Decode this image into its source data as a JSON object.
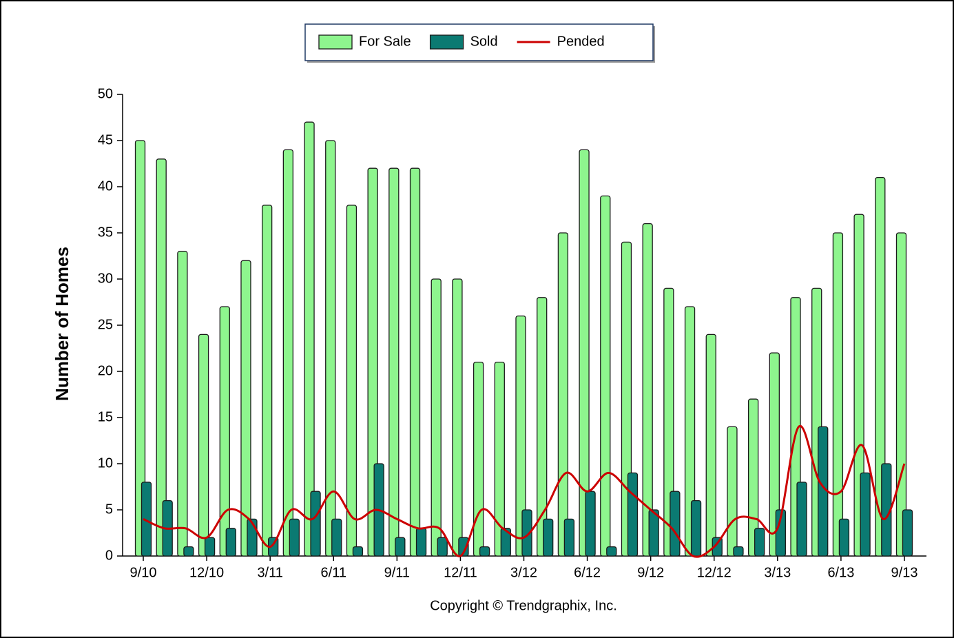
{
  "chart_data": {
    "type": "bar",
    "y_label": "Number of Homes",
    "footer": "Copyright © Trendgraphix, Inc.",
    "legend": "top",
    "grid": false,
    "categories": [
      "9/10",
      null,
      null,
      "12/10",
      null,
      null,
      "3/11",
      null,
      null,
      "6/11",
      null,
      null,
      "9/11",
      null,
      null,
      "12/11",
      null,
      null,
      "3/12",
      null,
      null,
      "6/12",
      null,
      null,
      "9/12",
      null,
      null,
      "12/12",
      null,
      null,
      "3/13",
      null,
      null,
      "6/13",
      null,
      null,
      "9/13"
    ],
    "ylim": [
      0,
      50
    ],
    "yticks": [
      0,
      5,
      10,
      15,
      20,
      25,
      30,
      35,
      40,
      45,
      50
    ],
    "series": [
      {
        "name": "For Sale",
        "type": "bar",
        "color": "#8ef58e",
        "values": [
          45,
          43,
          33,
          24,
          27,
          32,
          38,
          44,
          47,
          45,
          38,
          42,
          42,
          42,
          30,
          30,
          21,
          21,
          26,
          28,
          35,
          44,
          39,
          34,
          36,
          29,
          27,
          24,
          14,
          17,
          22,
          28,
          29,
          35,
          37,
          41,
          35
        ]
      },
      {
        "name": "Sold",
        "type": "bar",
        "color": "#0b7a72",
        "values": [
          8,
          6,
          1,
          2,
          3,
          4,
          2,
          4,
          7,
          4,
          1,
          10,
          2,
          3,
          2,
          2,
          1,
          3,
          5,
          4,
          4,
          7,
          1,
          9,
          5,
          7,
          6,
          2,
          1,
          3,
          5,
          8,
          14,
          4,
          9,
          10,
          5
        ]
      },
      {
        "name": "Pended",
        "type": "line",
        "color": "#cc0000",
        "values": [
          4,
          3,
          3,
          2,
          5,
          4,
          1,
          5,
          4,
          7,
          4,
          5,
          4,
          3,
          3,
          0,
          5,
          3,
          2,
          5,
          9,
          7,
          9,
          7,
          5,
          3,
          0,
          1,
          4,
          4,
          3,
          14,
          8,
          7,
          12,
          4,
          10
        ]
      }
    ]
  }
}
